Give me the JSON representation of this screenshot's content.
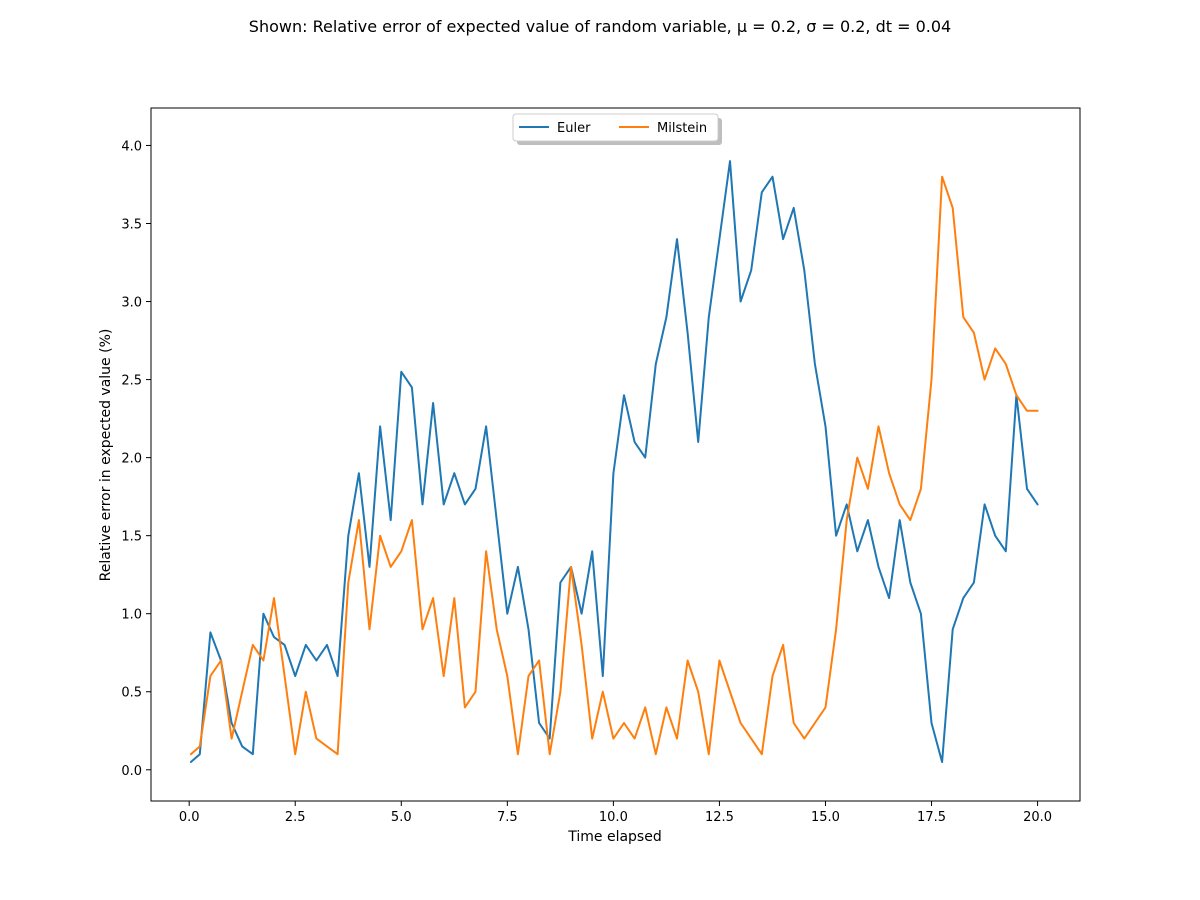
{
  "figure": {
    "title": "Shown: Relative error of expected value of random variable, μ = 0.2, σ = 0.2, dt = 0.04"
  },
  "chart_data": {
    "type": "line",
    "title": "Shown: Relative error of expected value of random variable, μ = 0.2, σ = 0.2, dt = 0.04",
    "xlabel": "Time elapsed",
    "ylabel": "Relative error in expected value (%)",
    "xlim": [
      -0.9,
      21.0
    ],
    "ylim": [
      -0.2,
      4.24
    ],
    "xticks": [
      0.0,
      2.5,
      5.0,
      7.5,
      10.0,
      12.5,
      15.0,
      17.5,
      20.0
    ],
    "xtick_labels": [
      "0.0",
      "2.5",
      "5.0",
      "7.5",
      "10.0",
      "12.5",
      "15.0",
      "17.5",
      "20.0"
    ],
    "yticks": [
      0.0,
      0.5,
      1.0,
      1.5,
      2.0,
      2.5,
      3.0,
      3.5,
      4.0
    ],
    "ytick_labels": [
      "0.0",
      "0.5",
      "1.0",
      "1.5",
      "2.0",
      "2.5",
      "3.0",
      "3.5",
      "4.0"
    ],
    "grid": false,
    "legend_position": "top-center",
    "series": [
      {
        "name": "Euler",
        "color": "#1f77b4",
        "x": [
          0.04,
          0.25,
          0.5,
          0.75,
          1.0,
          1.25,
          1.5,
          1.75,
          2.0,
          2.25,
          2.5,
          2.75,
          3.0,
          3.25,
          3.5,
          3.75,
          4.0,
          4.25,
          4.5,
          4.75,
          5.0,
          5.25,
          5.5,
          5.75,
          6.0,
          6.25,
          6.5,
          6.75,
          7.0,
          7.25,
          7.5,
          7.75,
          8.0,
          8.25,
          8.5,
          8.75,
          9.0,
          9.25,
          9.5,
          9.75,
          10.0,
          10.25,
          10.5,
          10.75,
          11.0,
          11.25,
          11.5,
          11.75,
          12.0,
          12.25,
          12.5,
          12.75,
          13.0,
          13.25,
          13.5,
          13.75,
          14.0,
          14.25,
          14.5,
          14.75,
          15.0,
          15.25,
          15.5,
          15.75,
          16.0,
          16.25,
          16.5,
          16.75,
          17.0,
          17.25,
          17.5,
          17.75,
          18.0,
          18.25,
          18.5,
          18.75,
          19.0,
          19.25,
          19.5,
          19.75,
          20.0
        ],
        "values": [
          0.05,
          0.1,
          0.88,
          0.7,
          0.3,
          0.15,
          0.1,
          1.0,
          0.85,
          0.8,
          0.6,
          0.8,
          0.7,
          0.8,
          0.6,
          1.5,
          1.9,
          1.3,
          2.2,
          1.6,
          2.55,
          2.45,
          1.7,
          2.35,
          1.7,
          1.9,
          1.7,
          1.8,
          2.2,
          1.6,
          1.0,
          1.3,
          0.9,
          0.3,
          0.2,
          1.2,
          1.3,
          1.0,
          1.4,
          0.6,
          1.9,
          2.4,
          2.1,
          2.0,
          2.6,
          2.9,
          3.4,
          2.8,
          2.1,
          2.9,
          3.4,
          3.9,
          3.0,
          3.2,
          3.7,
          3.8,
          3.4,
          3.6,
          3.2,
          2.6,
          2.2,
          1.5,
          1.7,
          1.4,
          1.6,
          1.3,
          1.1,
          1.6,
          1.2,
          1.0,
          0.3,
          0.05,
          0.9,
          1.1,
          1.2,
          1.7,
          1.5,
          1.4,
          2.4,
          1.8,
          1.7
        ]
      },
      {
        "name": "Milstein",
        "color": "#ff7f0e",
        "x": [
          0.04,
          0.25,
          0.5,
          0.75,
          1.0,
          1.25,
          1.5,
          1.75,
          2.0,
          2.25,
          2.5,
          2.75,
          3.0,
          3.25,
          3.5,
          3.75,
          4.0,
          4.25,
          4.5,
          4.75,
          5.0,
          5.25,
          5.5,
          5.75,
          6.0,
          6.25,
          6.5,
          6.75,
          7.0,
          7.25,
          7.5,
          7.75,
          8.0,
          8.25,
          8.5,
          8.75,
          9.0,
          9.25,
          9.5,
          9.75,
          10.0,
          10.25,
          10.5,
          10.75,
          11.0,
          11.25,
          11.5,
          11.75,
          12.0,
          12.25,
          12.5,
          12.75,
          13.0,
          13.25,
          13.5,
          13.75,
          14.0,
          14.25,
          14.5,
          14.75,
          15.0,
          15.25,
          15.5,
          15.75,
          16.0,
          16.25,
          16.5,
          16.75,
          17.0,
          17.25,
          17.5,
          17.75,
          18.0,
          18.25,
          18.5,
          18.75,
          19.0,
          19.25,
          19.5,
          19.75,
          20.0
        ],
        "values": [
          0.1,
          0.15,
          0.6,
          0.7,
          0.2,
          0.5,
          0.8,
          0.7,
          1.1,
          0.6,
          0.1,
          0.5,
          0.2,
          0.15,
          0.1,
          1.2,
          1.6,
          0.9,
          1.5,
          1.3,
          1.4,
          1.6,
          0.9,
          1.1,
          0.6,
          1.1,
          0.4,
          0.5,
          1.4,
          0.9,
          0.6,
          0.1,
          0.6,
          0.7,
          0.1,
          0.5,
          1.3,
          0.8,
          0.2,
          0.5,
          0.2,
          0.3,
          0.2,
          0.4,
          0.1,
          0.4,
          0.2,
          0.7,
          0.5,
          0.1,
          0.7,
          0.5,
          0.3,
          0.2,
          0.1,
          0.6,
          0.8,
          0.3,
          0.2,
          0.3,
          0.4,
          0.9,
          1.6,
          2.0,
          1.8,
          2.2,
          1.9,
          1.7,
          1.6,
          1.8,
          2.5,
          3.8,
          3.6,
          2.9,
          2.8,
          2.5,
          2.7,
          2.6,
          2.4,
          2.3,
          2.3
        ]
      }
    ]
  }
}
